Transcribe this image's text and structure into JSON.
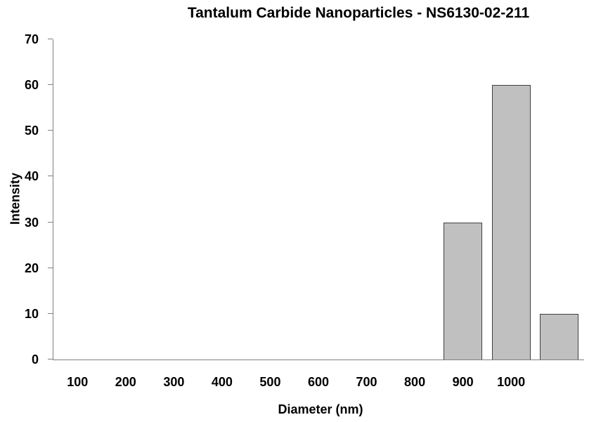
{
  "chart_data": {
    "type": "bar",
    "title": "Tantalum Carbide Nanoparticles - NS6130-02-211",
    "xlabel": "Diameter (nm)",
    "ylabel": "Intensity",
    "categories": [
      "100",
      "200",
      "300",
      "400",
      "500",
      "600",
      "700",
      "800",
      "900",
      "1000",
      ""
    ],
    "values": [
      0,
      0,
      0,
      0,
      0,
      0,
      0,
      0,
      30,
      60,
      10
    ],
    "ylim": [
      0,
      70
    ],
    "ytick_step": 10,
    "yticks": [
      0,
      10,
      20,
      30,
      40,
      50,
      60,
      70
    ],
    "grid": false,
    "legend": "none",
    "colors": {
      "bar_fill": "#c0c0c0",
      "bar_border": "#404040",
      "axis_line": "#808080",
      "text": "#000000",
      "background": "#ffffff"
    }
  }
}
